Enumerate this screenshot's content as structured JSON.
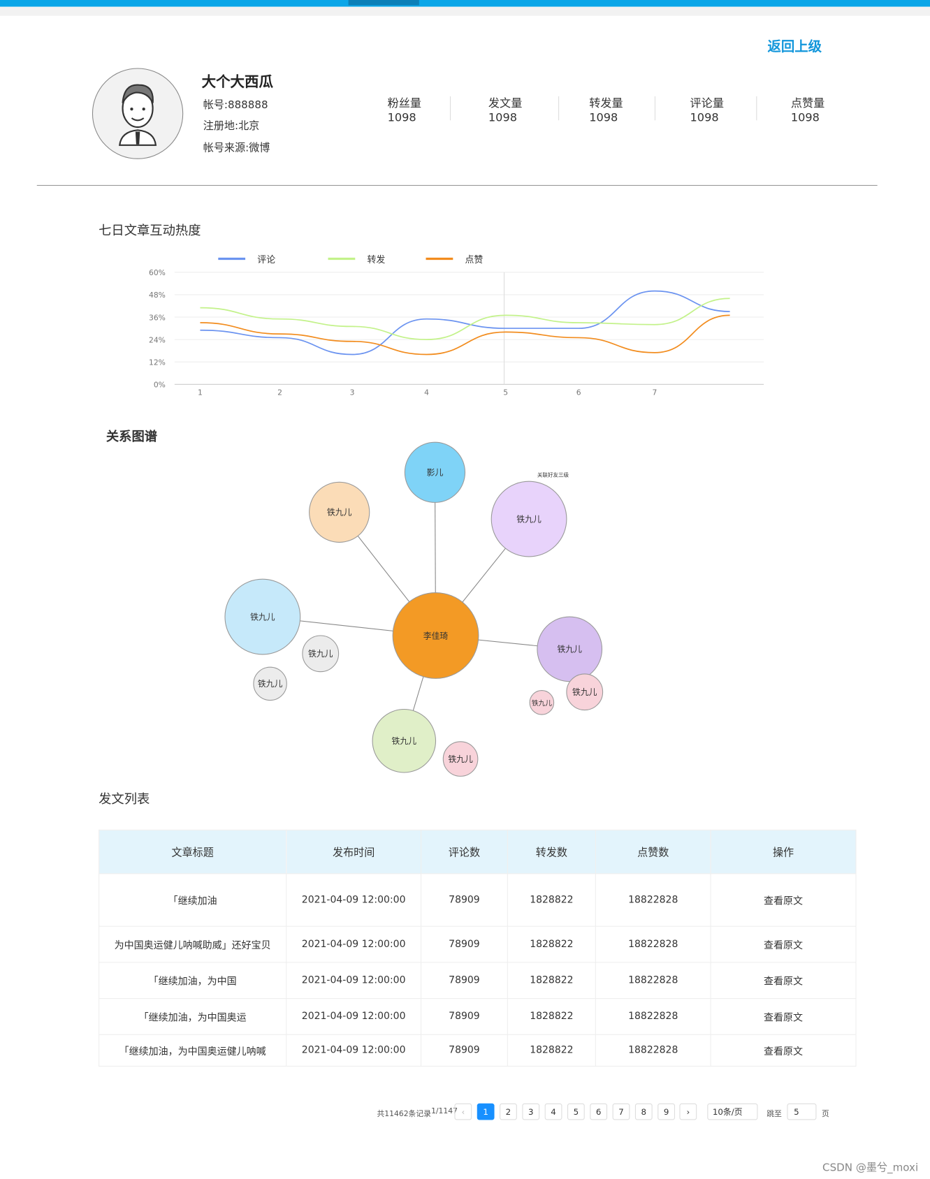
{
  "header": {
    "back": "返回上级",
    "name": "大个大西瓜",
    "account": "帐号:888888",
    "region": "注册地:北京",
    "source": "帐号来源:微博",
    "stats": [
      {
        "label": "粉丝量",
        "value": "1098"
      },
      {
        "label": "发文量",
        "value": "1098"
      },
      {
        "label": "转发量",
        "value": "1098"
      },
      {
        "label": "评论量",
        "value": "1098"
      },
      {
        "label": "点赞量",
        "value": "1098"
      }
    ]
  },
  "chart_data": {
    "type": "line",
    "title": "七日文章互动热度",
    "categories": [
      "1",
      "2",
      "3",
      "4",
      "5",
      "6",
      "7",
      null
    ],
    "ylim": [
      0,
      60
    ],
    "yticks": [
      {
        "value": 0,
        "label": "0%"
      },
      {
        "value": 12,
        "label": "12%"
      },
      {
        "value": 24,
        "label": "24%"
      },
      {
        "value": 36,
        "label": "36%"
      },
      {
        "value": 48,
        "label": "48%"
      },
      {
        "value": 60,
        "label": "60%"
      }
    ],
    "grid": true,
    "series": [
      {
        "name": "评论",
        "color": "#6b93f0",
        "values": [
          29,
          25,
          16,
          35,
          30,
          30,
          50,
          39
        ]
      },
      {
        "name": "转发",
        "color": "#c3f28a",
        "values": [
          41,
          35,
          31,
          24,
          37,
          33,
          32,
          46
        ]
      },
      {
        "name": "点赞",
        "color": "#f28c1e",
        "values": [
          33,
          27,
          23,
          16,
          28,
          25,
          17,
          37
        ]
      }
    ]
  },
  "graph": {
    "title": "关系图谱",
    "annotation": "关联好友三级",
    "nodes": [
      {
        "label": "影儿",
        "color": "#7fd3f7"
      },
      {
        "label": "铁九儿",
        "color": "#fbdcb7"
      },
      {
        "label": "铁九儿",
        "color": "#e8d3fb"
      },
      {
        "label": "铁九儿",
        "color": "#c6e9fa"
      },
      {
        "label": "李佳琦",
        "color": "#f39a25"
      },
      {
        "label": "铁九儿",
        "color": "#d6bff0"
      },
      {
        "label": "铁九儿",
        "color": "#ececec"
      },
      {
        "label": "铁九儿",
        "color": "#ececec"
      },
      {
        "label": "铁九儿",
        "color": "#f8d3da"
      },
      {
        "label": "铁九儿",
        "color": "#f8d3da"
      },
      {
        "label": "铁九儿",
        "color": "#e0efc8"
      },
      {
        "label": "铁九儿",
        "color": "#f8d3da"
      }
    ]
  },
  "table": {
    "title": "发文列表",
    "columns": [
      "文章标题",
      "发布时间",
      "评论数",
      "转发数",
      "点赞数",
      "操作"
    ],
    "rows": [
      [
        "「继续加油",
        "2021-04-09 12:00:00",
        "78909",
        "1828822",
        "18822828",
        "查看原文"
      ],
      [
        "为中国奥运健儿呐喊助威」还好宝贝",
        "2021-04-09 12:00:00",
        "78909",
        "1828822",
        "18822828",
        "查看原文"
      ],
      [
        "「继续加油，为中国",
        "2021-04-09 12:00:00",
        "78909",
        "1828822",
        "18822828",
        "查看原文"
      ],
      [
        "「继续加油，为中国奥运",
        "2021-04-09 12:00:00",
        "78909",
        "1828822",
        "18822828",
        "查看原文"
      ],
      [
        "「继续加油，为中国奥运健儿呐喊",
        "2021-04-09 12:00:00",
        "78909",
        "1828822",
        "18822828",
        "查看原文"
      ]
    ]
  },
  "pagination": {
    "total": "共11462条记录",
    "page": "1/1147",
    "prev": "‹",
    "pages": [
      "1",
      "2",
      "3",
      "4",
      "5",
      "6",
      "7",
      "8",
      "9"
    ],
    "next": "›",
    "size": "10条/页",
    "jump": "跳至",
    "jump_value": "5",
    "unit": "页"
  },
  "watermark": "CSDN @墨兮_moxi"
}
